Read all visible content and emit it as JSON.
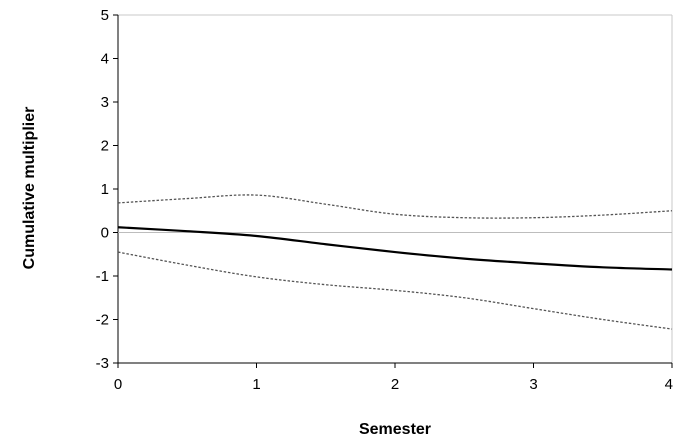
{
  "chart_data": {
    "type": "line",
    "title": "",
    "xlabel": "Semester",
    "ylabel": "Cumulative multiplier",
    "xlim": [
      0,
      4
    ],
    "ylim": [
      -3,
      5
    ],
    "x_ticks": [
      "0",
      "1",
      "2",
      "3",
      "4"
    ],
    "y_ticks": [
      "5",
      "4",
      "3",
      "2",
      "1",
      "0",
      "-1",
      "-2",
      "-3"
    ],
    "grid": false,
    "legend": "none",
    "reference_line": 0,
    "x": [
      0,
      0.5,
      1,
      1.5,
      2,
      2.5,
      3,
      3.5,
      4
    ],
    "series": [
      {
        "style": "solid",
        "color": "#000000",
        "values": [
          0.12,
          0.03,
          -0.08,
          -0.27,
          -0.45,
          -0.6,
          -0.71,
          -0.8,
          -0.85
        ]
      },
      {
        "style": "dotted",
        "color": "#555555",
        "values": [
          0.68,
          0.78,
          0.86,
          0.65,
          0.42,
          0.34,
          0.34,
          0.4,
          0.5
        ]
      },
      {
        "style": "dotted",
        "color": "#555555",
        "values": [
          -0.45,
          -0.75,
          -1.02,
          -1.2,
          -1.33,
          -1.5,
          -1.75,
          -2.0,
          -2.22
        ]
      }
    ]
  }
}
